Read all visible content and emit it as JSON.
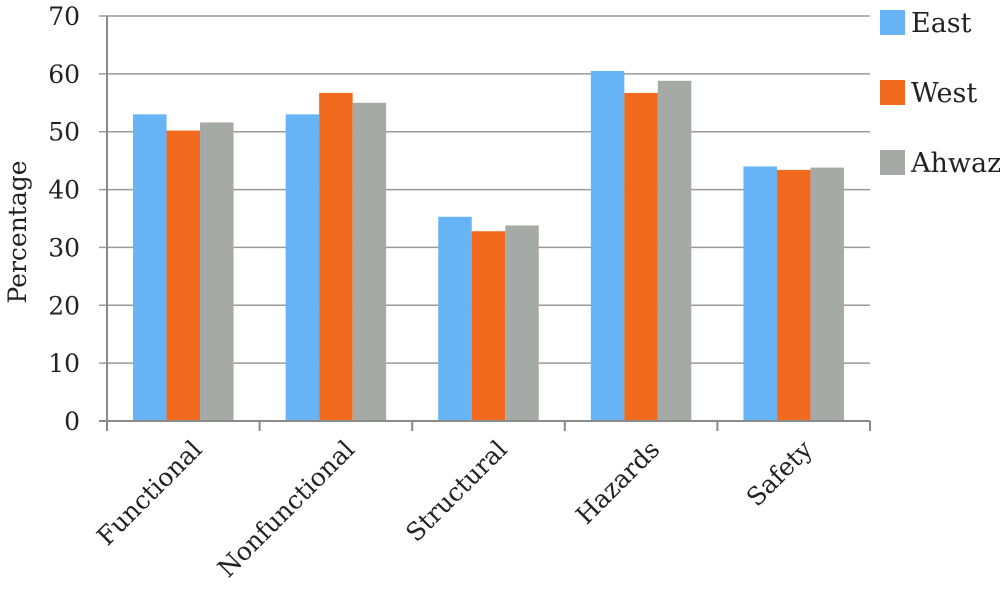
{
  "chart_data": {
    "type": "bar",
    "title": "",
    "xlabel": "",
    "ylabel": "Percentage",
    "ylim": [
      0,
      70
    ],
    "yticks": [
      0,
      10,
      20,
      30,
      40,
      50,
      60,
      70
    ],
    "grid": true,
    "legend_position": "right",
    "categories": [
      "Functional",
      "Nonfunctional",
      "Structural",
      "Hazards",
      "Safety"
    ],
    "series": [
      {
        "name": "East",
        "color": "#66b3f6",
        "values": [
          53.0,
          53.0,
          35.3,
          60.5,
          44.0
        ]
      },
      {
        "name": "West",
        "color": "#f26a1e",
        "values": [
          50.2,
          56.7,
          32.8,
          56.7,
          43.4
        ]
      },
      {
        "name": "Ahwaz",
        "color": "#a5aaa7",
        "values": [
          51.6,
          55.0,
          33.8,
          58.8,
          43.8
        ]
      }
    ]
  }
}
